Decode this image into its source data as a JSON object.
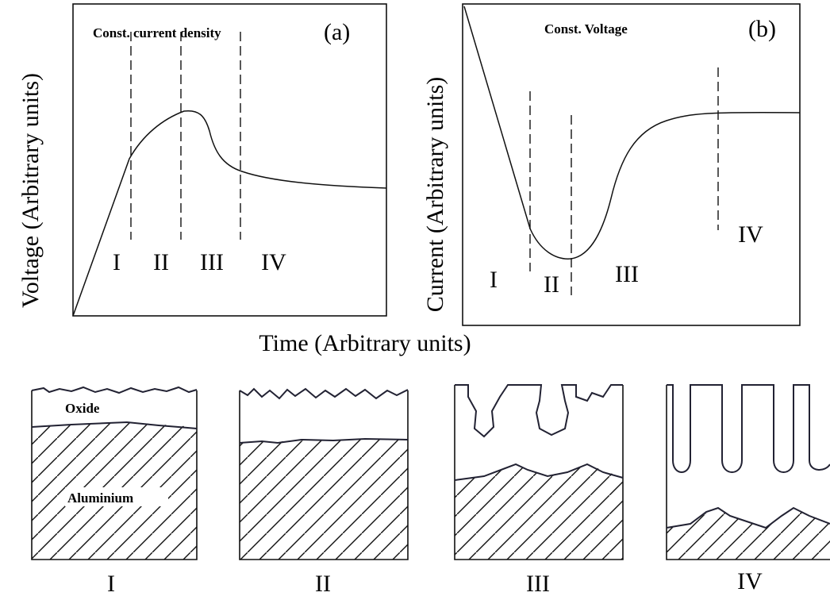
{
  "panel_a": {
    "title": "Const. current density",
    "tag": "(a)",
    "y_label": "Voltage (Arbitrary units)",
    "regions": [
      "I",
      "II",
      "III",
      "IV"
    ]
  },
  "panel_b": {
    "title": "Const. Voltage",
    "tag": "(b)",
    "y_label": "Current (Arbitrary units)",
    "regions": [
      "I",
      "II",
      "III",
      "IV"
    ]
  },
  "x_label": "Time (Arbitrary units)",
  "stages": {
    "oxide_label": "Oxide",
    "metal_label": "Aluminium",
    "labels": [
      "I",
      "II",
      "III",
      "IV"
    ]
  }
}
